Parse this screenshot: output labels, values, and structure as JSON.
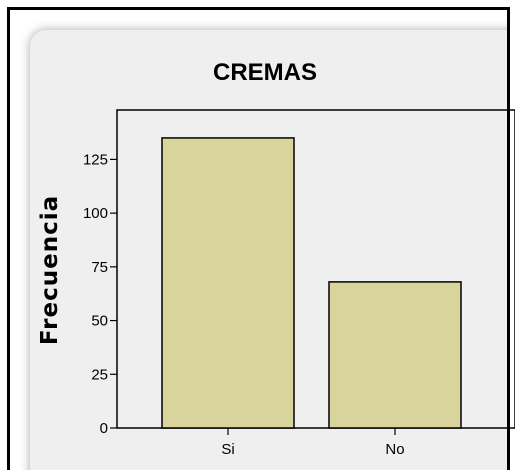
{
  "chart_data": {
    "type": "bar",
    "title": "CREMAS",
    "xlabel": "",
    "ylabel": "Frecuencia",
    "categories": [
      "Si",
      "No"
    ],
    "values": [
      135,
      68
    ],
    "yticks": [
      0,
      25,
      50,
      75,
      100,
      125
    ],
    "ylim": [
      0,
      148
    ],
    "grid": false,
    "bar_color": "#d9d39c",
    "plot_background": "#efefef"
  }
}
